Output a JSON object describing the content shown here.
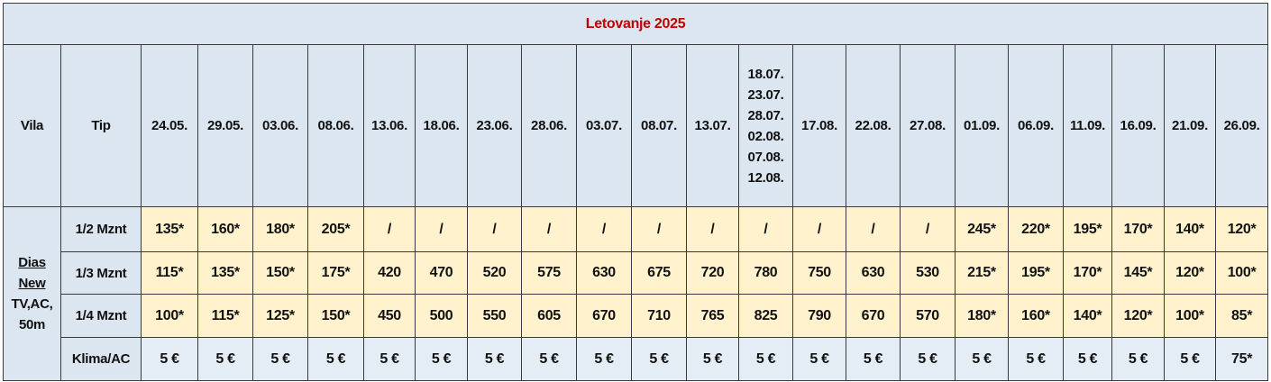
{
  "title": "Letovanje 2025",
  "header": {
    "vila": "Vila",
    "tip": "Tip",
    "dates": [
      "24.05.",
      "29.05.",
      "03.06.",
      "08.06.",
      "13.06.",
      "18.06.",
      "23.06.",
      "28.06.",
      "03.07.",
      "08.07.",
      "13.07.",
      "18.07. 23.07. 28.07. 02.08. 07.08. 12.08.",
      "17.08.",
      "22.08.",
      "27.08.",
      "01.09.",
      "06.09.",
      "11.09.",
      "16.09.",
      "21.09.",
      "26.09."
    ]
  },
  "vila": {
    "name": "Dias New",
    "info": "TV,AC, 50m"
  },
  "rows": [
    {
      "tip": "1/2 Mznt",
      "cells": [
        "135*",
        "160*",
        "180*",
        "205*",
        "/",
        "/",
        "/",
        "/",
        "/",
        "/",
        "/",
        "/",
        "/",
        "/",
        "/",
        "245*",
        "220*",
        "195*",
        "170*",
        "140*",
        "120*"
      ]
    },
    {
      "tip": "1/3 Mznt",
      "cells": [
        "115*",
        "135*",
        "150*",
        "175*",
        420,
        470,
        520,
        575,
        630,
        675,
        720,
        780,
        750,
        630,
        530,
        "215*",
        "195*",
        "170*",
        "145*",
        "120*",
        "100*"
      ]
    },
    {
      "tip": "1/4 Mznt",
      "cells": [
        "100*",
        "115*",
        "125*",
        "150*",
        450,
        500,
        550,
        605,
        670,
        710,
        765,
        825,
        790,
        670,
        570,
        "180*",
        "160*",
        "140*",
        "120*",
        "100*",
        "85*"
      ]
    },
    {
      "tip": "Klima/AC",
      "cells": [
        "5 €",
        "5 €",
        "5 €",
        "5 €",
        "5 €",
        "5 €",
        "5 €",
        "5 €",
        "5 €",
        "5 €",
        "5 €",
        "5 €",
        "5 €",
        "5 €",
        "5 €",
        "5 €",
        "5 €",
        "5 €",
        "5 €",
        "5 €",
        "75*"
      ]
    }
  ]
}
